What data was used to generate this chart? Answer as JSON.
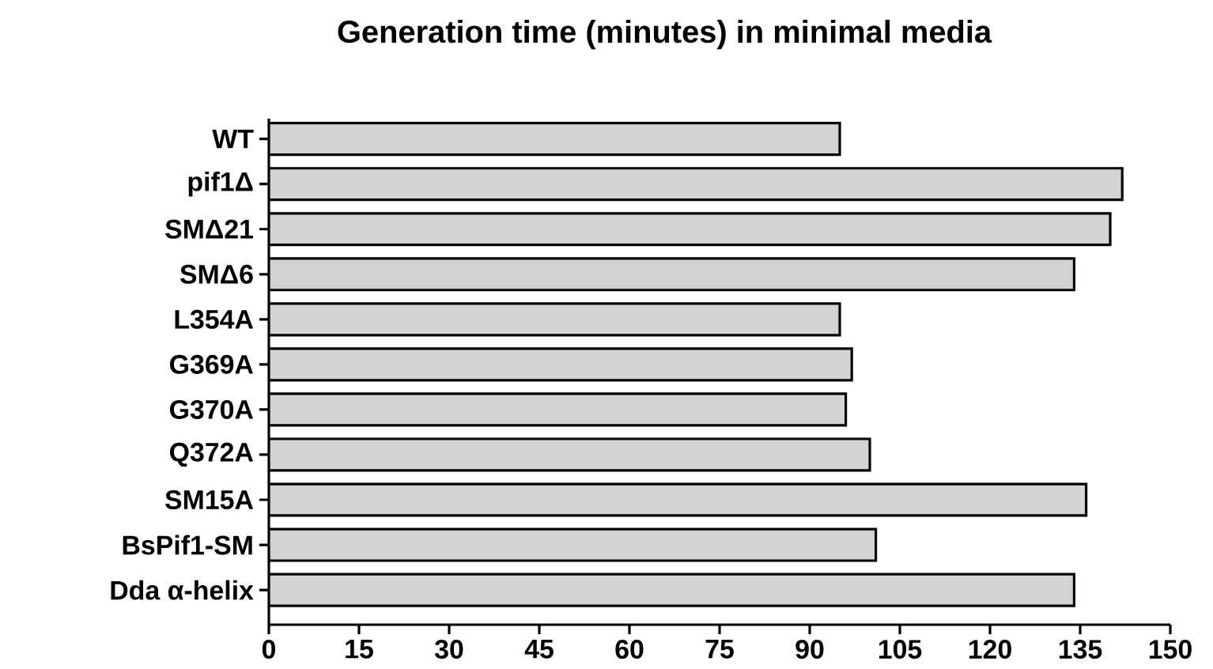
{
  "chart_data": {
    "type": "bar",
    "orientation": "horizontal",
    "title": "Generation time (minutes) in minimal media",
    "categories": [
      "WT",
      "pif1Δ",
      "SMΔ21",
      "SMΔ6",
      "L354A",
      "G369A",
      "G370A",
      "Q372A",
      "SM15A",
      "BsPif1-SM",
      "Dda α-helix"
    ],
    "values": [
      95,
      142,
      140,
      134,
      95,
      97,
      96,
      100,
      136,
      101,
      134
    ],
    "color": "#d3d3d3",
    "xlim": [
      0,
      150
    ],
    "xticks": [
      0,
      15,
      30,
      45,
      60,
      75,
      90,
      105,
      120,
      135,
      150
    ],
    "grid": false
  }
}
